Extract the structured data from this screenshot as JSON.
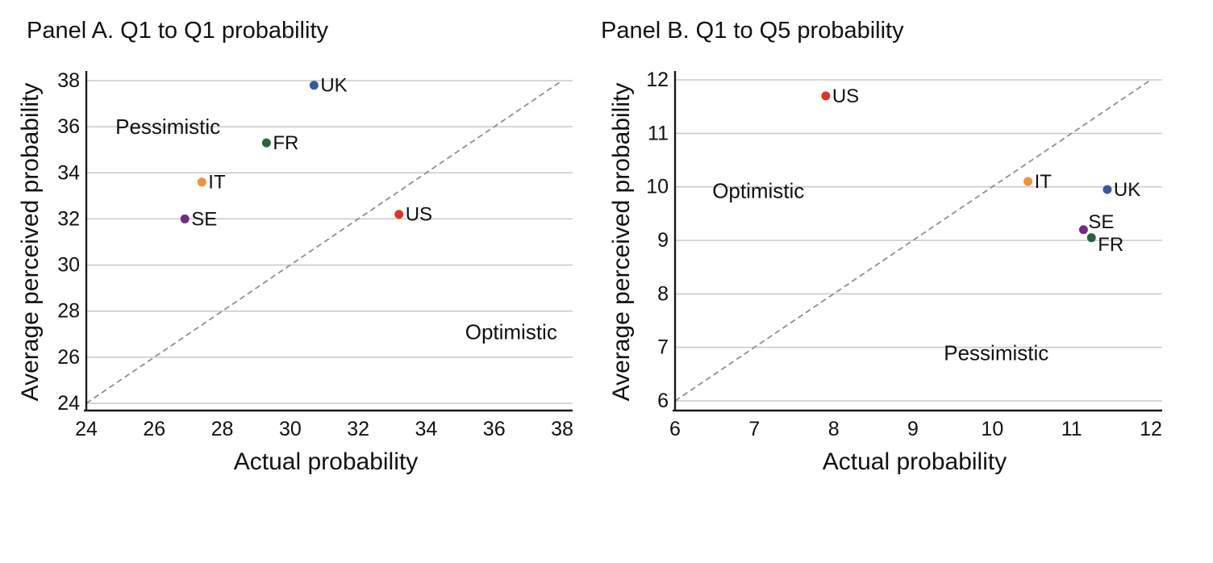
{
  "figure": {
    "background": "#ffffff",
    "text_color": "#111111",
    "grid_color": "#c8c8c8",
    "axis_color": "#1a1a1a",
    "diagonal_line_color": "#8f8f8f"
  },
  "chart_data": [
    {
      "type": "scatter",
      "panel_id": "A",
      "title": "Panel A. Q1 to Q1 probability",
      "xlabel": "Actual probability",
      "ylabel": "Average perceived probability",
      "xlim": [
        24,
        38
      ],
      "ylim": [
        24,
        38
      ],
      "xticks": [
        24,
        26,
        28,
        30,
        32,
        34,
        36,
        38
      ],
      "yticks": [
        24,
        26,
        28,
        30,
        32,
        34,
        36,
        38
      ],
      "grid": "horizontal",
      "legend": "none",
      "diagonal_dashed_line": {
        "x1": 24,
        "y1": 24,
        "x2": 38,
        "y2": 38
      },
      "points": [
        {
          "label": "UK",
          "x": 30.7,
          "y": 37.8,
          "color": "#3a57a2",
          "label_position": "right"
        },
        {
          "label": "FR",
          "x": 29.3,
          "y": 35.3,
          "color": "#28663a",
          "label_position": "right"
        },
        {
          "label": "IT",
          "x": 27.4,
          "y": 33.6,
          "color": "#f0913c",
          "label_position": "right"
        },
        {
          "label": "SE",
          "x": 26.9,
          "y": 32.0,
          "color": "#6d2e86",
          "label_position": "right"
        },
        {
          "label": "US",
          "x": 33.2,
          "y": 32.2,
          "color": "#e03228",
          "label_position": "right"
        }
      ],
      "annotations": [
        {
          "text": "Pessimistic",
          "x": 26.4,
          "y": 36.0
        },
        {
          "text": "Optimistic",
          "x": 36.5,
          "y": 27.1
        }
      ]
    },
    {
      "type": "scatter",
      "panel_id": "B",
      "title": "Panel B. Q1 to Q5 probability",
      "xlabel": "Actual probability",
      "ylabel": "Average perceived probability",
      "xlim": [
        6,
        12
      ],
      "ylim": [
        6,
        12
      ],
      "xticks": [
        6,
        7,
        8,
        9,
        10,
        11,
        12
      ],
      "yticks": [
        6,
        7,
        8,
        9,
        10,
        11,
        12
      ],
      "grid": "horizontal",
      "legend": "none",
      "diagonal_dashed_line": {
        "x1": 6,
        "y1": 6,
        "x2": 12,
        "y2": 12
      },
      "points": [
        {
          "label": "US",
          "x": 7.9,
          "y": 11.7,
          "color": "#e03228",
          "label_position": "right"
        },
        {
          "label": "IT",
          "x": 10.45,
          "y": 10.1,
          "color": "#f0913c",
          "label_position": "right"
        },
        {
          "label": "UK",
          "x": 11.45,
          "y": 9.95,
          "color": "#3a57a2",
          "label_position": "right"
        },
        {
          "label": "SE",
          "x": 11.15,
          "y": 9.2,
          "color": "#6d2e86",
          "label_position": "above-right"
        },
        {
          "label": "FR",
          "x": 11.25,
          "y": 9.05,
          "color": "#28663a",
          "label_position": "below-right"
        }
      ],
      "annotations": [
        {
          "text": "Optimistic",
          "x": 7.05,
          "y": 9.93
        },
        {
          "text": "Pessimistic",
          "x": 10.05,
          "y": 6.9
        }
      ]
    }
  ]
}
